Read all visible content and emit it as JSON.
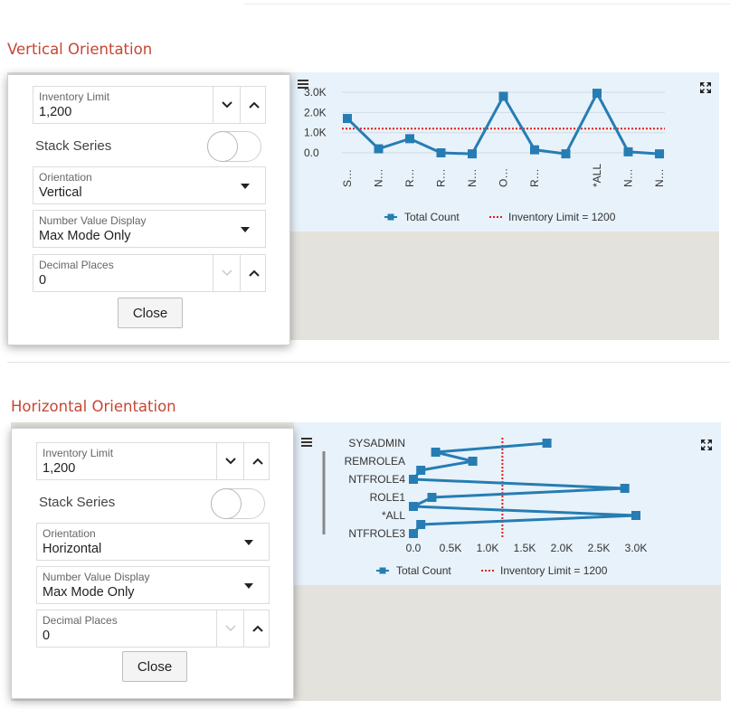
{
  "vertical": {
    "title": "Vertical Orientation",
    "settings": {
      "inventory_limit": {
        "label": "Inventory Limit",
        "value": "1,200"
      },
      "stack_series": {
        "label": "Stack Series"
      },
      "orientation": {
        "label": "Orientation",
        "value": "Vertical"
      },
      "number_value_display": {
        "label": "Number Value Display",
        "value": "Max Mode Only"
      },
      "decimal_places": {
        "label": "Decimal Places",
        "value": "0"
      },
      "close_label": "Close"
    }
  },
  "horizontal": {
    "title": "Horizontal Orientation",
    "settings": {
      "inventory_limit": {
        "label": "Inventory Limit",
        "value": "1,200"
      },
      "stack_series": {
        "label": "Stack Series"
      },
      "orientation": {
        "label": "Orientation",
        "value": "Horizontal"
      },
      "number_value_display": {
        "label": "Number Value Display",
        "value": "Max Mode Only"
      },
      "decimal_places": {
        "label": "Decimal Places",
        "value": "0"
      },
      "close_label": "Close"
    }
  },
  "colors": {
    "series": "#267db3",
    "limit": "#e0201b",
    "title": "#c74634"
  },
  "icons": [
    "menu-icon",
    "expand-icon",
    "chevron-down-icon",
    "chevron-up-icon",
    "caret-down-icon"
  ],
  "chart_data": [
    {
      "type": "line",
      "orientation": "vertical",
      "categories": [
        "S…",
        "N…",
        "R…",
        "R…",
        "N…",
        "O…",
        "R…",
        "",
        "*ALL",
        "N…",
        "N…"
      ],
      "values": [
        1700,
        200,
        700,
        0,
        -50,
        2800,
        150,
        -50,
        2950,
        50,
        -50
      ],
      "ylim": [
        0,
        3000
      ],
      "y_ticks": [
        "0.0",
        "1.0K",
        "2.0K",
        "3.0K"
      ],
      "series": [
        {
          "name": "Total Count",
          "values": [
            1700,
            200,
            700,
            0,
            -50,
            2800,
            150,
            -50,
            2950,
            50,
            -50
          ]
        }
      ],
      "reference_line": {
        "name": "Inventory Limit = 1200",
        "value": 1200
      },
      "legend": [
        "Total Count",
        "Inventory Limit = 1200"
      ],
      "legend_position": "bottom"
    },
    {
      "type": "line",
      "orientation": "horizontal",
      "categories": [
        "SYSADMIN",
        "",
        "REMROLEA",
        "",
        "NTFROLE4",
        "",
        "ROLE1",
        "",
        "*ALL",
        "",
        "NTFROLE3"
      ],
      "values": [
        1800,
        300,
        800,
        100,
        0,
        2850,
        250,
        0,
        3000,
        100,
        0
      ],
      "xlim": [
        0,
        3000
      ],
      "x_ticks": [
        "0.0",
        "0.5K",
        "1.0K",
        "1.5K",
        "2.0K",
        "2.5K",
        "3.0K"
      ],
      "series": [
        {
          "name": "Total Count",
          "values": [
            1800,
            300,
            800,
            100,
            0,
            2850,
            250,
            0,
            3000,
            100,
            0
          ]
        }
      ],
      "reference_line": {
        "name": "Inventory Limit = 1200",
        "value": 1200
      },
      "legend": [
        "Total Count",
        "Inventory Limit = 1200"
      ],
      "legend_position": "bottom"
    }
  ]
}
